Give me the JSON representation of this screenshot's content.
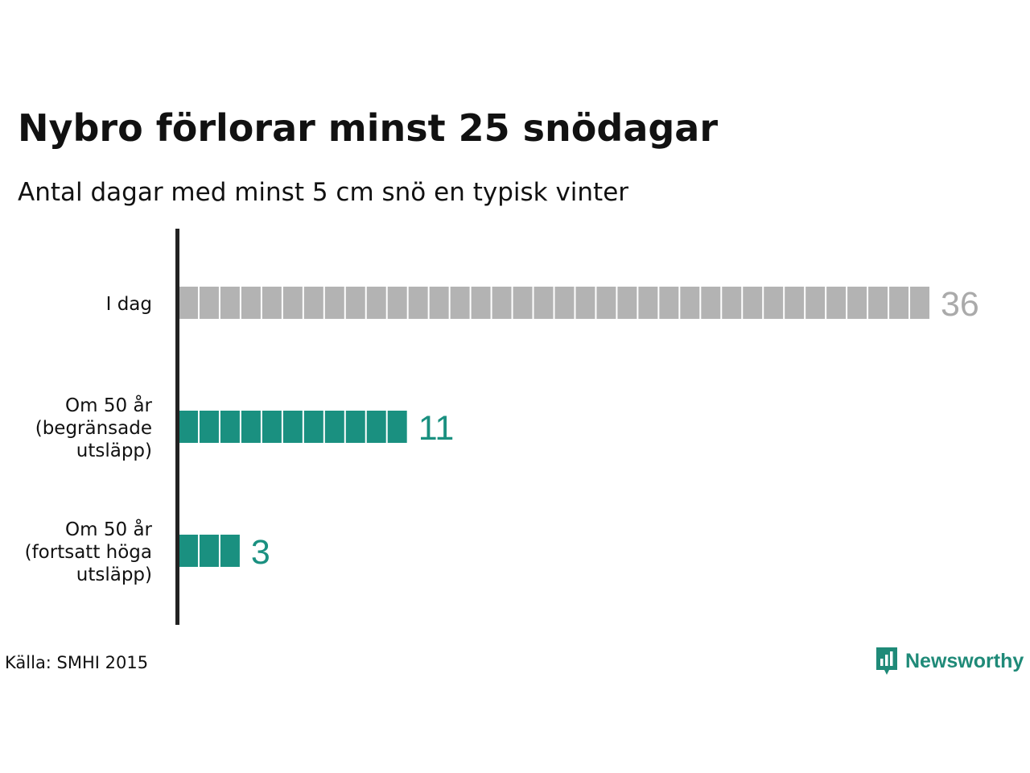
{
  "title": "Nybro förlorar minst 25 snödagar",
  "subtitle": "Antal dagar med minst 5 cm snö en typisk vinter",
  "source": "Källa: SMHI 2015",
  "brand": "Newsworthy",
  "colors": {
    "current": "#b3b3b3",
    "current_label": "#aaaaaa",
    "future": "#1a9080",
    "axis": "#222222",
    "brand": "#1f8a78"
  },
  "chart_data": {
    "type": "bar",
    "orientation": "horizontal",
    "style": "unit-blocks",
    "unit": "1 dag per ruta",
    "categories": [
      [
        "I dag"
      ],
      [
        "Om 50 år",
        "(begränsade",
        "utsläpp)"
      ],
      [
        "Om 50 år",
        "(fortsatt höga",
        "utsläpp)"
      ]
    ],
    "values": [
      36,
      11,
      3
    ],
    "value_labels": [
      "36",
      "11",
      "3"
    ],
    "bar_colors": [
      "#b3b3b3",
      "#1a9080",
      "#1a9080"
    ],
    "label_colors": [
      "#aaaaaa",
      "#1a9080",
      "#1a9080"
    ],
    "xlim": [
      0,
      36
    ],
    "grid": false,
    "legend": "none"
  }
}
